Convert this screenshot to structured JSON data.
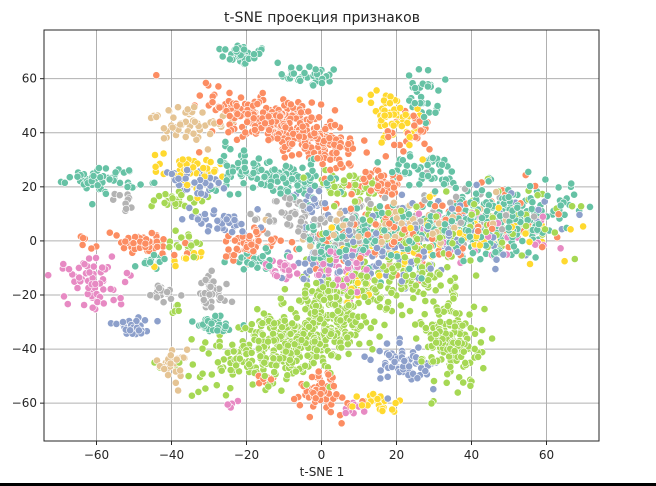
{
  "chart_data": {
    "type": "scatter",
    "title": "t-SNE проекция признаков",
    "xlabel": "t-SNE 1",
    "ylabel": "",
    "xlim": [
      -74,
      74
    ],
    "ylim": [
      -74,
      78
    ],
    "xticks": [
      -60,
      -40,
      -20,
      0,
      20,
      40,
      60
    ],
    "yticks": [
      -60,
      -40,
      -20,
      0,
      20,
      40,
      60
    ],
    "xtick_labels": [
      "−60",
      "−40",
      "−20",
      "0",
      "20",
      "40",
      "60"
    ],
    "ytick_labels": [
      "−60",
      "−40",
      "−20",
      "0",
      "20",
      "40",
      "60"
    ],
    "grid": true,
    "legend": null,
    "palette": {
      "teal": "#66c2a5",
      "orange": "#fc8d62",
      "blue": "#8da0cb",
      "pink": "#e78ac3",
      "green": "#a6d854",
      "yellow": "#ffd92f",
      "tan": "#e5c494",
      "gray": "#b3b3b3"
    },
    "marker_edge_color": "#ffffff",
    "clusters": [
      {
        "color": "teal",
        "cx": -21,
        "cy": 69,
        "sx": 3.5,
        "sy": 2.0,
        "n": 40,
        "rot": -10
      },
      {
        "color": "teal",
        "cx": -3,
        "cy": 61,
        "sx": 4.0,
        "sy": 2.0,
        "n": 35,
        "rot": -5
      },
      {
        "color": "orange",
        "cx": -12,
        "cy": 44,
        "sx": 9.0,
        "sy": 4.5,
        "n": 260,
        "rot": -25
      },
      {
        "color": "orange",
        "cx": 0,
        "cy": 34,
        "sx": 5.0,
        "sy": 3.5,
        "n": 80,
        "rot": -20
      },
      {
        "color": "tan",
        "cx": -35,
        "cy": 43,
        "sx": 4.5,
        "sy": 3.0,
        "n": 55,
        "rot": -25
      },
      {
        "color": "yellow",
        "cx": 20,
        "cy": 45,
        "sx": 3.5,
        "sy": 6.0,
        "n": 55,
        "rot": 25
      },
      {
        "color": "teal",
        "cx": 27,
        "cy": 53,
        "sx": 2.0,
        "sy": 5.0,
        "n": 35,
        "rot": 0
      },
      {
        "color": "orange",
        "cx": 23,
        "cy": 40,
        "sx": 3.5,
        "sy": 4.0,
        "n": 25,
        "rot": 10
      },
      {
        "color": "teal",
        "cx": -58,
        "cy": 23,
        "sx": 4.5,
        "sy": 2.5,
        "n": 55,
        "rot": -5
      },
      {
        "color": "gray",
        "cx": -52,
        "cy": 14,
        "sx": 1.5,
        "sy": 2.0,
        "n": 10,
        "rot": 0
      },
      {
        "color": "yellow",
        "cx": -36,
        "cy": 26,
        "sx": 4.0,
        "sy": 3.0,
        "n": 45,
        "rot": -15
      },
      {
        "color": "blue",
        "cx": -34,
        "cy": 22,
        "sx": 6.0,
        "sy": 2.5,
        "n": 40,
        "rot": -15
      },
      {
        "color": "teal",
        "cx": -22,
        "cy": 27,
        "sx": 3.5,
        "sy": 4.0,
        "n": 40,
        "rot": 0
      },
      {
        "color": "teal",
        "cx": -10,
        "cy": 23,
        "sx": 7.0,
        "sy": 3.5,
        "n": 90,
        "rot": -10
      },
      {
        "color": "green",
        "cx": -38,
        "cy": 15,
        "sx": 3.5,
        "sy": 2.0,
        "n": 25,
        "rot": 0
      },
      {
        "color": "blue",
        "cx": -26,
        "cy": 7,
        "sx": 4.5,
        "sy": 2.0,
        "n": 40,
        "rot": -15
      },
      {
        "color": "blue",
        "cx": -3,
        "cy": 15,
        "sx": 3.0,
        "sy": 2.5,
        "n": 20,
        "rot": 0
      },
      {
        "color": "gray",
        "cx": -8,
        "cy": 9,
        "sx": 3.5,
        "sy": 4.0,
        "n": 40,
        "rot": 0
      },
      {
        "color": "green",
        "cx": 7,
        "cy": 20,
        "sx": 5.0,
        "sy": 3.0,
        "n": 45,
        "rot": 0
      },
      {
        "color": "orange",
        "cx": 17,
        "cy": 21,
        "sx": 4.0,
        "sy": 2.5,
        "n": 40,
        "rot": 0
      },
      {
        "color": "teal",
        "cx": 28,
        "cy": 26,
        "sx": 5.0,
        "sy": 3.0,
        "n": 50,
        "rot": -15
      },
      {
        "color": "teal",
        "cx": 45,
        "cy": 8,
        "sx": 12.0,
        "sy": 6.0,
        "n": 300,
        "rot": 10
      },
      {
        "color": "green",
        "cx": 40,
        "cy": 6,
        "sx": 12.0,
        "sy": 6.0,
        "n": 120,
        "rot": 10
      },
      {
        "color": "orange",
        "cx": 38,
        "cy": 5,
        "sx": 13.0,
        "sy": 6.5,
        "n": 90,
        "rot": 10
      },
      {
        "color": "blue",
        "cx": 36,
        "cy": 4,
        "sx": 13.0,
        "sy": 6.5,
        "n": 80,
        "rot": 10
      },
      {
        "color": "yellow",
        "cx": 45,
        "cy": 4,
        "sx": 12.0,
        "sy": 6.0,
        "n": 35,
        "rot": 10
      },
      {
        "color": "pink",
        "cx": 40,
        "cy": 2,
        "sx": 13.0,
        "sy": 6.0,
        "n": 35,
        "rot": 10
      },
      {
        "color": "gray",
        "cx": 30,
        "cy": 8,
        "sx": 12.0,
        "sy": 6.0,
        "n": 40,
        "rot": 10
      },
      {
        "color": "tan",
        "cx": 30,
        "cy": 6,
        "sx": 12.0,
        "sy": 6.0,
        "n": 35,
        "rot": 10
      },
      {
        "color": "teal",
        "cx": 15,
        "cy": 2,
        "sx": 9.0,
        "sy": 6.0,
        "n": 150,
        "rot": 0
      },
      {
        "color": "green",
        "cx": 15,
        "cy": 0,
        "sx": 9.0,
        "sy": 7.0,
        "n": 70,
        "rot": 0
      },
      {
        "color": "orange",
        "cx": 12,
        "cy": 3,
        "sx": 9.0,
        "sy": 6.0,
        "n": 60,
        "rot": 0
      },
      {
        "color": "blue",
        "cx": 12,
        "cy": -2,
        "sx": 9.0,
        "sy": 6.0,
        "n": 55,
        "rot": 0
      },
      {
        "color": "gray",
        "cx": 8,
        "cy": 6,
        "sx": 8.0,
        "sy": 5.0,
        "n": 50,
        "rot": 0
      },
      {
        "color": "pink",
        "cx": 7,
        "cy": -8,
        "sx": 5.0,
        "sy": 3.0,
        "n": 30,
        "rot": 0
      },
      {
        "color": "yellow",
        "cx": 18,
        "cy": 0,
        "sx": 9.0,
        "sy": 6.0,
        "n": 25,
        "rot": 0
      },
      {
        "color": "tan",
        "cx": 14,
        "cy": 5,
        "sx": 9.0,
        "sy": 6.0,
        "n": 30,
        "rot": 0
      },
      {
        "color": "teal",
        "cx": 2,
        "cy": -3,
        "sx": 4.0,
        "sy": 3.0,
        "n": 40,
        "rot": 0
      },
      {
        "color": "orange",
        "cx": -63,
        "cy": -1,
        "sx": 2.0,
        "sy": 2.0,
        "n": 6,
        "rot": 0
      },
      {
        "color": "orange",
        "cx": -47,
        "cy": -1,
        "sx": 4.5,
        "sy": 2.0,
        "n": 55,
        "rot": -5
      },
      {
        "color": "teal",
        "cx": -45,
        "cy": -8,
        "sx": 2.5,
        "sy": 1.5,
        "n": 12,
        "rot": 0
      },
      {
        "color": "green",
        "cx": -35,
        "cy": -1,
        "sx": 2.5,
        "sy": 2.0,
        "n": 20,
        "rot": 0
      },
      {
        "color": "yellow",
        "cx": -37,
        "cy": -7,
        "sx": 2.5,
        "sy": 1.5,
        "n": 10,
        "rot": 0
      },
      {
        "color": "orange",
        "cx": -20,
        "cy": -1,
        "sx": 4.0,
        "sy": 3.0,
        "n": 50,
        "rot": 0
      },
      {
        "color": "teal",
        "cx": -17,
        "cy": -7,
        "sx": 3.5,
        "sy": 2.0,
        "n": 30,
        "rot": 0
      },
      {
        "color": "pink",
        "cx": -11,
        "cy": -10,
        "sx": 2.5,
        "sy": 2.0,
        "n": 25,
        "rot": 0
      },
      {
        "color": "pink",
        "cx": -61,
        "cy": -15,
        "sx": 4.5,
        "sy": 4.5,
        "n": 60,
        "rot": 30
      },
      {
        "color": "gray",
        "cx": -43,
        "cy": -19,
        "sx": 2.5,
        "sy": 2.0,
        "n": 25,
        "rot": 0
      },
      {
        "color": "gray",
        "cx": -30,
        "cy": -20,
        "sx": 2.5,
        "sy": 3.5,
        "n": 35,
        "rot": 0
      },
      {
        "color": "teal",
        "cx": -28,
        "cy": -31,
        "sx": 3.0,
        "sy": 2.0,
        "n": 35,
        "rot": -10
      },
      {
        "color": "blue",
        "cx": -50,
        "cy": -32,
        "sx": 3.0,
        "sy": 1.5,
        "n": 25,
        "rot": -10
      },
      {
        "color": "green",
        "cx": -38,
        "cy": -25,
        "sx": 1.5,
        "sy": 1.0,
        "n": 5,
        "rot": 0
      },
      {
        "color": "tan",
        "cx": -40,
        "cy": -46,
        "sx": 2.0,
        "sy": 3.0,
        "n": 30,
        "rot": 0
      },
      {
        "color": "green",
        "cx": -8,
        "cy": -38,
        "sx": 12.0,
        "sy": 5.5,
        "n": 420,
        "rot": 25
      },
      {
        "color": "green",
        "cx": 5,
        "cy": -20,
        "sx": 6.0,
        "sy": 5.0,
        "n": 120,
        "rot": 15
      },
      {
        "color": "orange",
        "cx": -15,
        "cy": -52,
        "sx": 2.0,
        "sy": 1.5,
        "n": 10,
        "rot": 0
      },
      {
        "color": "orange",
        "cx": 0,
        "cy": -56,
        "sx": 3.0,
        "sy": 4.0,
        "n": 60,
        "rot": 30
      },
      {
        "color": "pink",
        "cx": -24,
        "cy": -60,
        "sx": 1.2,
        "sy": 0.8,
        "n": 5,
        "rot": 0
      },
      {
        "color": "blue",
        "cx": 21,
        "cy": -45,
        "sx": 4.0,
        "sy": 4.0,
        "n": 70,
        "rot": 30
      },
      {
        "color": "green",
        "cx": 35,
        "cy": -38,
        "sx": 4.0,
        "sy": 8.0,
        "n": 150,
        "rot": 0
      },
      {
        "color": "green",
        "cx": 26,
        "cy": -15,
        "sx": 5.0,
        "sy": 6.0,
        "n": 80,
        "rot": 0
      },
      {
        "color": "yellow",
        "cx": 14,
        "cy": -60,
        "sx": 3.0,
        "sy": 2.0,
        "n": 25,
        "rot": -20
      },
      {
        "color": "pink",
        "cx": 9,
        "cy": -62,
        "sx": 2.0,
        "sy": 1.0,
        "n": 8,
        "rot": 0
      },
      {
        "color": "yellow",
        "cx": 10,
        "cy": -17,
        "sx": 3.0,
        "sy": 3.0,
        "n": 15,
        "rot": 0
      },
      {
        "color": "pink",
        "cx": 5,
        "cy": -16,
        "sx": 3.0,
        "sy": 4.0,
        "n": 15,
        "rot": 0
      },
      {
        "color": "blue",
        "cx": 0,
        "cy": -10,
        "sx": 4.0,
        "sy": 3.0,
        "n": 25,
        "rot": 0
      }
    ]
  }
}
